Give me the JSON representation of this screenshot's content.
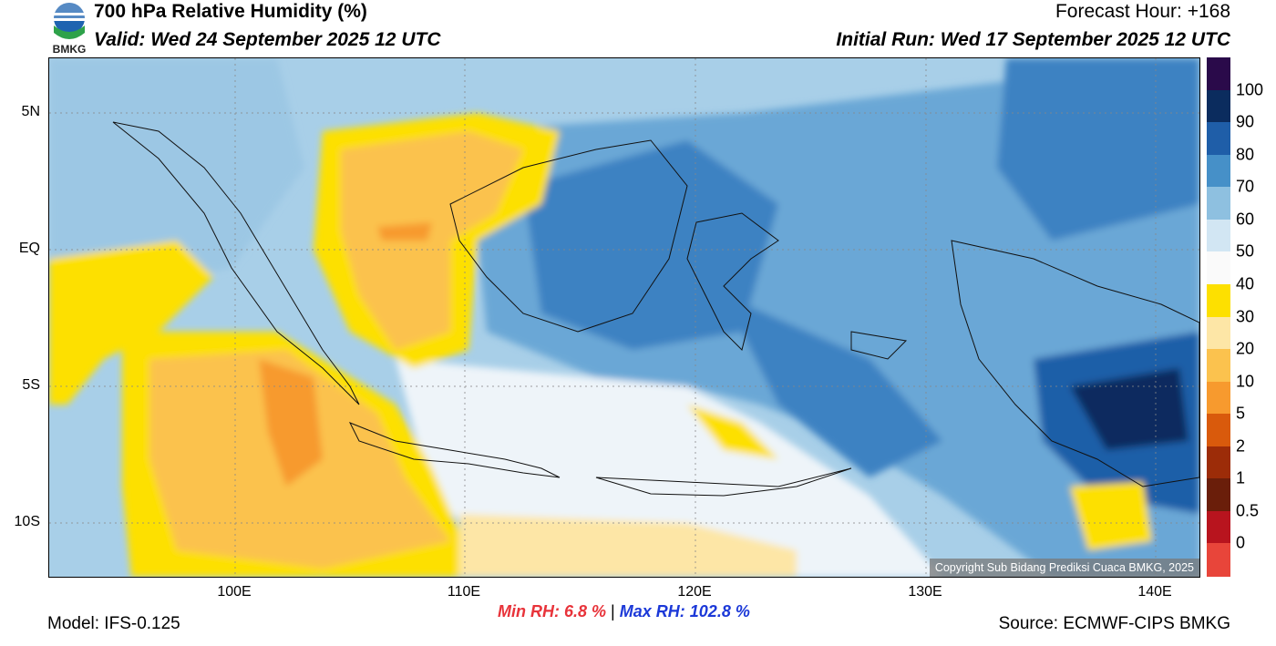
{
  "header": {
    "title": "700 hPa Relative Humidity (%)",
    "valid": "Valid: Wed 24 September 2025 12 UTC",
    "forecast_hour": "Forecast Hour: +168",
    "initial_run": "Initial Run: Wed 17 September 2025 12 UTC"
  },
  "logo": {
    "text": "BMKG",
    "icon": "bmkg-logo"
  },
  "map": {
    "lat_labels": [
      "5N",
      "EQ",
      "5S",
      "10S"
    ],
    "lon_labels": [
      "100E",
      "110E",
      "120E",
      "130E",
      "140E"
    ],
    "copyright": "Copyright Sub Bidang Prediksi Cuaca BMKG, 2025"
  },
  "legend": {
    "labels": [
      "100",
      "90",
      "80",
      "70",
      "60",
      "50",
      "40",
      "30",
      "20",
      "10",
      "5",
      "2",
      "1",
      "0.5",
      "0"
    ],
    "colors": [
      "#2a0a4a",
      "#0b2c5e",
      "#1f5ea8",
      "#4690c8",
      "#8ec0e0",
      "#d2e6f3",
      "#fafafa",
      "#fde000",
      "#fde6a6",
      "#fbc24e",
      "#f79a2e",
      "#d95a0c",
      "#9c2c08",
      "#6a1e0a",
      "#b8141e",
      "#e8453a"
    ]
  },
  "footer": {
    "model": "Model: IFS-0.125",
    "source": "Source: ECMWF-CIPS BMKG",
    "min_label": "Min RH:",
    "min_value": "6.8 %",
    "separator": "|",
    "max_label": "Max RH:",
    "max_value": "102.8 %"
  }
}
